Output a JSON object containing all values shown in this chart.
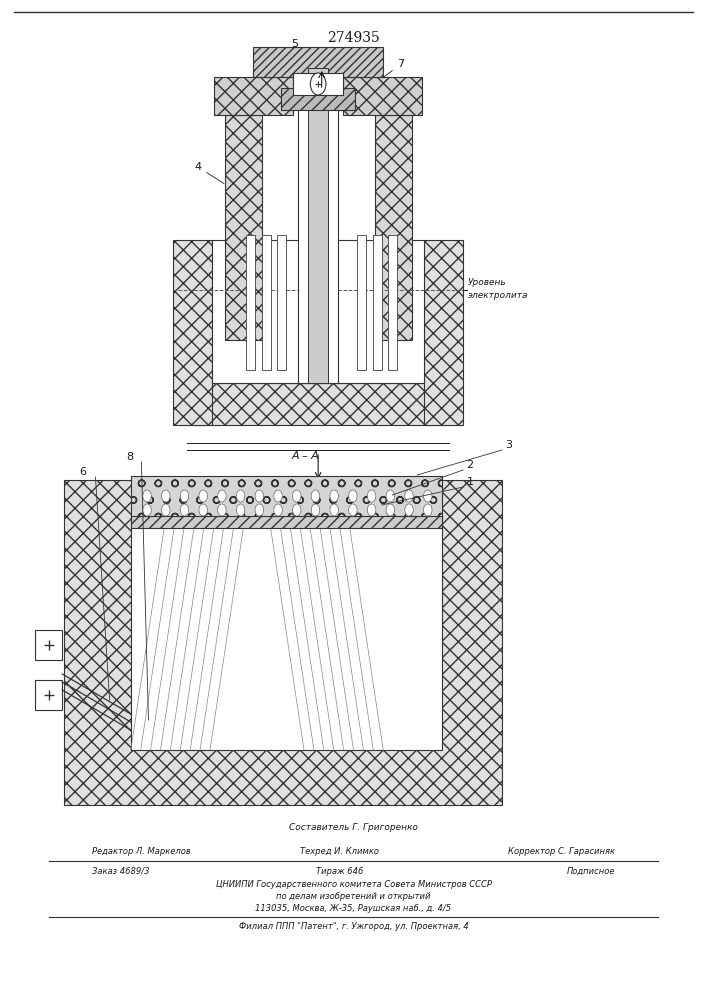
{
  "patent_number": "274935",
  "bg_color": "#ffffff",
  "line_color": "#1a1a1a",
  "footer_line1": "Составитель Г. Григоренко",
  "footer_line2_col1": "Редактор Л. Маркелов",
  "footer_line2_col2": "Техред И. Климко",
  "footer_line2_col3": "Корректор С. Гарасиняк",
  "footer_line3_col1": "Заказ 4689/3",
  "footer_line3_col2": "Тираж 646",
  "footer_line3_col3": "Подписное",
  "footer_line4": "ЦНИИПИ Государственного комитета Совета Министров СССР",
  "footer_line5": "по делам изобретений и открытий",
  "footer_line6": "113035, Москва, Ж-35, Раушская наб., д. 4/5",
  "footer_line7": "Филиал ППП \"Патент\", г. Ужгород, ул. Проектная, 4"
}
